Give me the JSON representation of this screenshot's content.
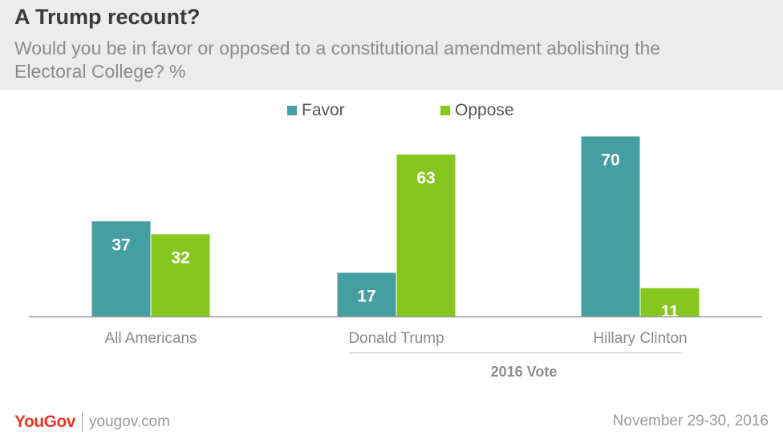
{
  "header": {
    "title": "A Trump recount?",
    "subtitle": "Would you be in favor or opposed to a constitutional amendment abolishing the Electoral College? %"
  },
  "chart_data": {
    "type": "bar",
    "categories": [
      "All Americans",
      "Donald Trump",
      "Hillary Clinton"
    ],
    "series": [
      {
        "name": "Favor",
        "values": [
          37,
          17,
          70
        ],
        "color": "#459ea0"
      },
      {
        "name": "Oppose",
        "values": [
          32,
          63,
          11
        ],
        "color": "#86c71f"
      }
    ],
    "group_label": "2016 Vote",
    "grouped_categories": [
      "Donald Trump",
      "Hillary Clinton"
    ],
    "legend_position": "top-center",
    "ylim": [
      0,
      72
    ],
    "grid": false
  },
  "footer": {
    "logo": "YouGov",
    "site": "yougov.com",
    "date": "November 29-30, 2016"
  },
  "colors": {
    "favor": "#459ea0",
    "oppose": "#86c71f",
    "logo": "#e6362a"
  }
}
